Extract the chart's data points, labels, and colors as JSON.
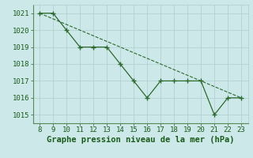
{
  "x": [
    8,
    9,
    10,
    11,
    12,
    13,
    14,
    15,
    16,
    17,
    18,
    19,
    20,
    21,
    22,
    23
  ],
  "y_main": [
    1021,
    1021,
    1020,
    1019,
    1019,
    1019,
    1018,
    1017,
    1016,
    1017,
    1017,
    1017,
    1017,
    1015,
    1016,
    1016
  ],
  "trend_x": [
    8,
    23
  ],
  "trend_y": [
    1021,
    1016
  ],
  "line_color": "#2d6a2d",
  "marker": "+",
  "marker_size": 4,
  "marker_linewidth": 1.0,
  "bg_color": "#cce8e8",
  "grid_color": "#b0cece",
  "text_color": "#1a5c1a",
  "xlabel": "Graphe pression niveau de la mer (hPa)",
  "xlim": [
    7.5,
    23.5
  ],
  "ylim": [
    1014.5,
    1021.5
  ],
  "yticks": [
    1015,
    1016,
    1017,
    1018,
    1019,
    1020,
    1021
  ],
  "xticks": [
    8,
    9,
    10,
    11,
    12,
    13,
    14,
    15,
    16,
    17,
    18,
    19,
    20,
    21,
    22,
    23
  ],
  "tick_fontsize": 6.5,
  "xlabel_fontsize": 7.5,
  "line_width": 0.9,
  "trend_linewidth": 0.8
}
